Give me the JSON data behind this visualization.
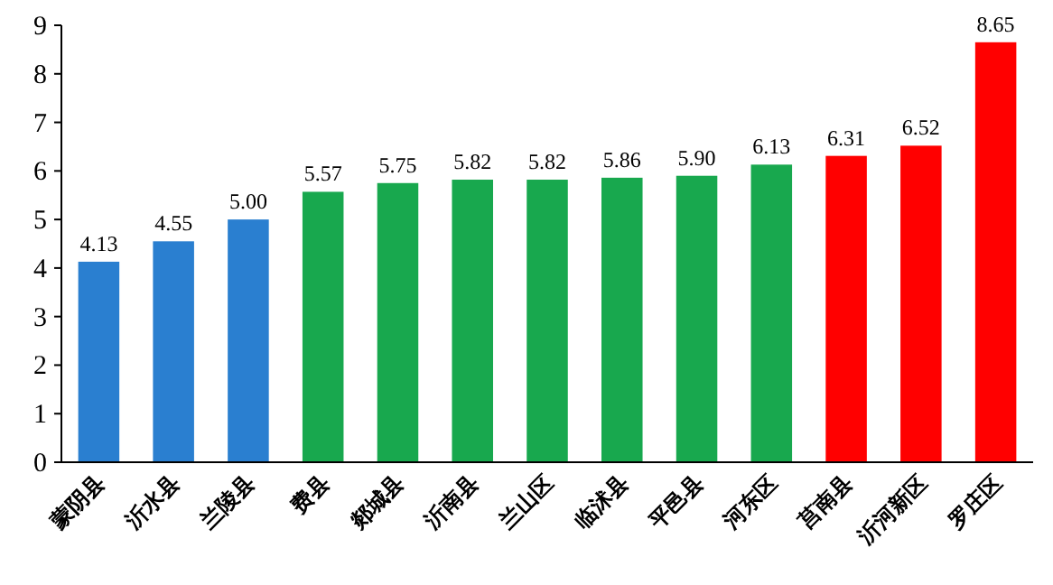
{
  "chart_data": {
    "type": "bar",
    "categories": [
      "蒙阴县",
      "沂水县",
      "兰陵县",
      "费县",
      "郯城县",
      "沂南县",
      "兰山区",
      "临沭县",
      "平邑县",
      "河东区",
      "莒南县",
      "沂河新区",
      "罗庄区"
    ],
    "values": [
      4.13,
      4.55,
      5.0,
      5.57,
      5.75,
      5.82,
      5.82,
      5.86,
      5.9,
      6.13,
      6.31,
      6.52,
      8.65
    ],
    "value_labels": [
      "4.13",
      "4.55",
      "5.00",
      "5.57",
      "5.75",
      "5.82",
      "5.82",
      "5.86",
      "5.90",
      "6.13",
      "6.31",
      "6.52",
      "8.65"
    ],
    "colors": [
      "#2a7fd0",
      "#2a7fd0",
      "#2a7fd0",
      "#18a84e",
      "#18a84e",
      "#18a84e",
      "#18a84e",
      "#18a84e",
      "#18a84e",
      "#18a84e",
      "#ff0000",
      "#ff0000",
      "#ff0000"
    ],
    "ylim": [
      0,
      9
    ],
    "yticks": [
      0,
      1,
      2,
      3,
      4,
      5,
      6,
      7,
      8,
      9
    ]
  }
}
